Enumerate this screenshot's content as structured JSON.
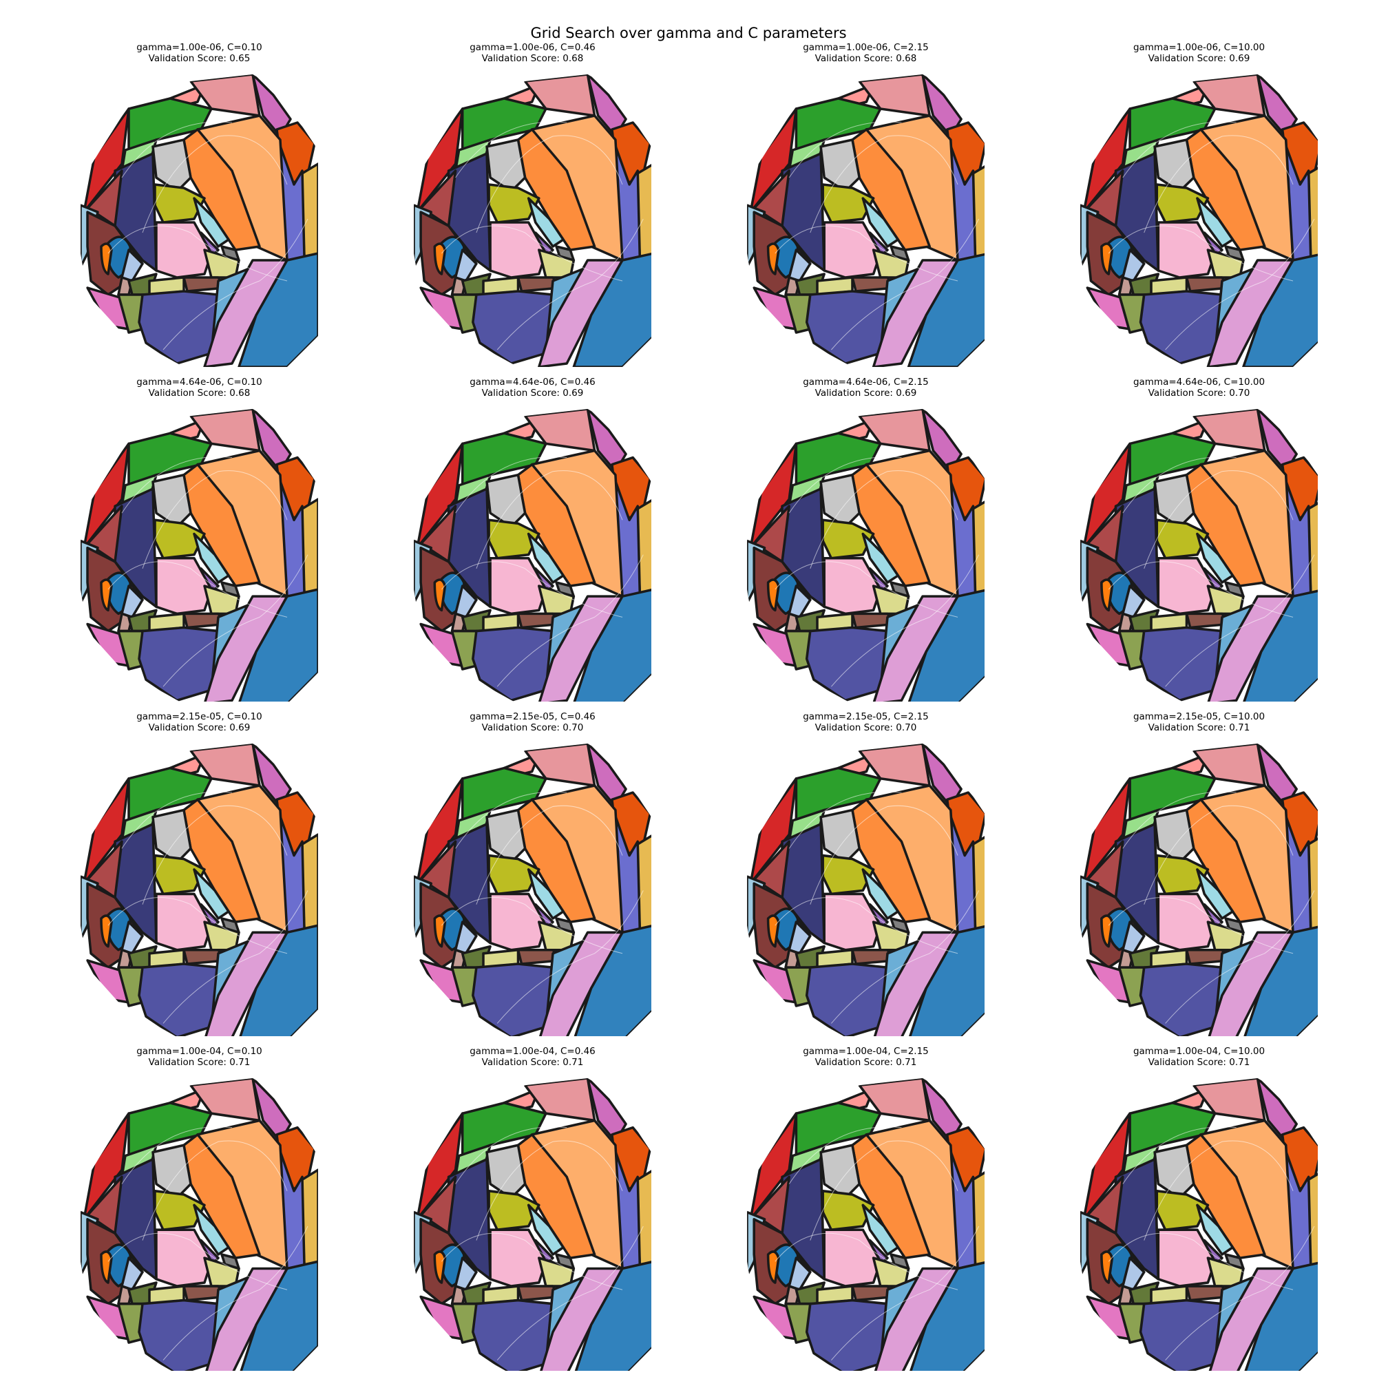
{
  "title": "Grid Search over gamma and C parameters",
  "chart_data": {
    "type": "heatmap",
    "title": "Grid Search over gamma and C parameters",
    "description_of_panels": "4x4 grid of decision-region maps; each panel titled with its gamma, C and validation score",
    "panels": [
      {
        "row": 0,
        "col": 0,
        "gamma": "1.00e-06",
        "C": "0.10",
        "score": "0.65",
        "line1": "gamma=1.00e-06, C=0.10",
        "line2": "Validation Score: 0.65"
      },
      {
        "row": 0,
        "col": 1,
        "gamma": "1.00e-06",
        "C": "0.46",
        "score": "0.68",
        "line1": "gamma=1.00e-06, C=0.46",
        "line2": "Validation Score: 0.68"
      },
      {
        "row": 0,
        "col": 2,
        "gamma": "1.00e-06",
        "C": "2.15",
        "score": "0.68",
        "line1": "gamma=1.00e-06, C=2.15",
        "line2": "Validation Score: 0.68"
      },
      {
        "row": 0,
        "col": 3,
        "gamma": "1.00e-06",
        "C": "10.00",
        "score": "0.69",
        "line1": "gamma=1.00e-06, C=10.00",
        "line2": "Validation Score: 0.69"
      },
      {
        "row": 1,
        "col": 0,
        "gamma": "4.64e-06",
        "C": "0.10",
        "score": "0.68",
        "line1": "gamma=4.64e-06, C=0.10",
        "line2": "Validation Score: 0.68"
      },
      {
        "row": 1,
        "col": 1,
        "gamma": "4.64e-06",
        "C": "0.46",
        "score": "0.69",
        "line1": "gamma=4.64e-06, C=0.46",
        "line2": "Validation Score: 0.69"
      },
      {
        "row": 1,
        "col": 2,
        "gamma": "4.64e-06",
        "C": "2.15",
        "score": "0.69",
        "line1": "gamma=4.64e-06, C=2.15",
        "line2": "Validation Score: 0.69"
      },
      {
        "row": 1,
        "col": 3,
        "gamma": "4.64e-06",
        "C": "10.00",
        "score": "0.70",
        "line1": "gamma=4.64e-06, C=10.00",
        "line2": "Validation Score: 0.70"
      },
      {
        "row": 2,
        "col": 0,
        "gamma": "2.15e-05",
        "C": "0.10",
        "score": "0.69",
        "line1": "gamma=2.15e-05, C=0.10",
        "line2": "Validation Score: 0.69"
      },
      {
        "row": 2,
        "col": 1,
        "gamma": "2.15e-05",
        "C": "0.46",
        "score": "0.70",
        "line1": "gamma=2.15e-05, C=0.46",
        "line2": "Validation Score: 0.70"
      },
      {
        "row": 2,
        "col": 2,
        "gamma": "2.15e-05",
        "C": "2.15",
        "score": "0.70",
        "line1": "gamma=2.15e-05, C=2.15",
        "line2": "Validation Score: 0.70"
      },
      {
        "row": 2,
        "col": 3,
        "gamma": "2.15e-05",
        "C": "10.00",
        "score": "0.71",
        "line1": "gamma=2.15e-05, C=10.00",
        "line2": "Validation Score: 0.71"
      },
      {
        "row": 3,
        "col": 0,
        "gamma": "1.00e-04",
        "C": "0.10",
        "score": "0.71",
        "line1": "gamma=1.00e-04, C=0.10",
        "line2": "Validation Score: 0.71"
      },
      {
        "row": 3,
        "col": 1,
        "gamma": "1.00e-04",
        "C": "0.46",
        "score": "0.71",
        "line1": "gamma=1.00e-04, C=0.46",
        "line2": "Validation Score: 0.71"
      },
      {
        "row": 3,
        "col": 2,
        "gamma": "1.00e-04",
        "C": "2.15",
        "score": "0.71",
        "line1": "gamma=1.00e-04, C=2.15",
        "line2": "Validation Score: 0.71"
      },
      {
        "row": 3,
        "col": 3,
        "gamma": "1.00e-04",
        "C": "10.00",
        "score": "0.71",
        "line1": "gamma=1.00e-04, C=10.00",
        "line2": "Validation Score: 0.71"
      }
    ],
    "gamma_values": [
      "1.00e-06",
      "4.64e-06",
      "2.15e-05",
      "1.00e-04"
    ],
    "C_values": [
      "0.10",
      "0.46",
      "2.15",
      "10.00"
    ],
    "region_colors": [
      "#d62728",
      "#2ca02c",
      "#98df8a",
      "#ff9896",
      "#e7969c",
      "#ffbb78",
      "#fd8d3c",
      "#fdae6b",
      "#e6550d",
      "#c7c7c7",
      "#bcbd22",
      "#9edae5",
      "#f7b6d2",
      "#7f7f7f",
      "#dbdb8d",
      "#393b79",
      "#6b6ecf",
      "#ad494a",
      "#843c39",
      "#1f77b4",
      "#aec7e8",
      "#9ecae1",
      "#e377c2",
      "#637939",
      "#8ca252",
      "#c49c94",
      "#8c564b",
      "#5254a3",
      "#6baed6",
      "#de9ed6",
      "#3182bd",
      "#e7ba52",
      "#ce6dbd",
      "#9467bd",
      "#ff7f0e"
    ],
    "grid": false,
    "axes_visible": false
  }
}
